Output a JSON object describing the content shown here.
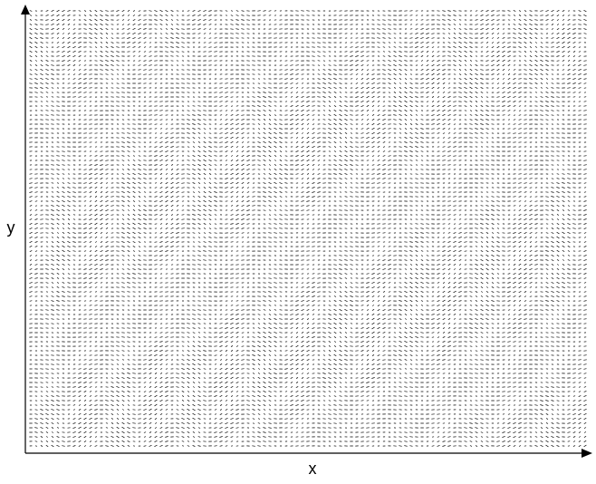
{
  "chart_data": {
    "type": "quiver",
    "x_label": "x",
    "y_label": "y",
    "color": "#000000"
  }
}
